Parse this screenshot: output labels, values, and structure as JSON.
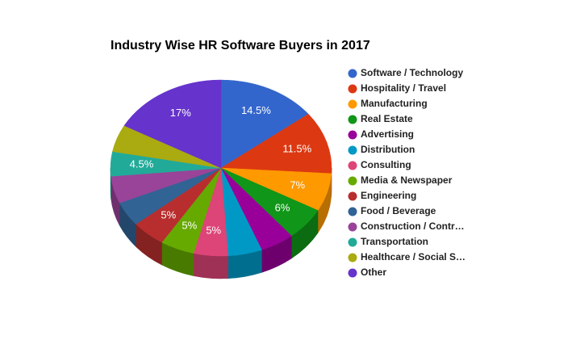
{
  "chart_data": {
    "type": "pie",
    "title": "Industry Wise HR Software Buyers in 2017",
    "three_d": true,
    "categories": [
      "Software / Technology",
      "Hospitality / Travel",
      "Manufacturing",
      "Real Estate",
      "Advertising",
      "Distribution",
      "Consulting",
      "Media & Newspaper",
      "Engineering",
      "Food / Beverage",
      "Construction / Contr…",
      "Transportation",
      "Healthcare / Social S…",
      "Other"
    ],
    "values": [
      14.5,
      11.5,
      7,
      6,
      5,
      5,
      5,
      5,
      5,
      4.5,
      5,
      4.5,
      5,
      17
    ],
    "value_labels": [
      "14.5%",
      "11.5%",
      "7%",
      "6%",
      null,
      null,
      "5%",
      "5%",
      "5%",
      null,
      null,
      "4.5%",
      null,
      "17%"
    ],
    "colors": [
      "#3366cc",
      "#dc3912",
      "#ff9900",
      "#109618",
      "#990099",
      "#0099c6",
      "#dd4477",
      "#66aa00",
      "#b82e2e",
      "#316395",
      "#994499",
      "#22aa99",
      "#aaaa11",
      "#6633cc"
    ],
    "legend": "right"
  }
}
